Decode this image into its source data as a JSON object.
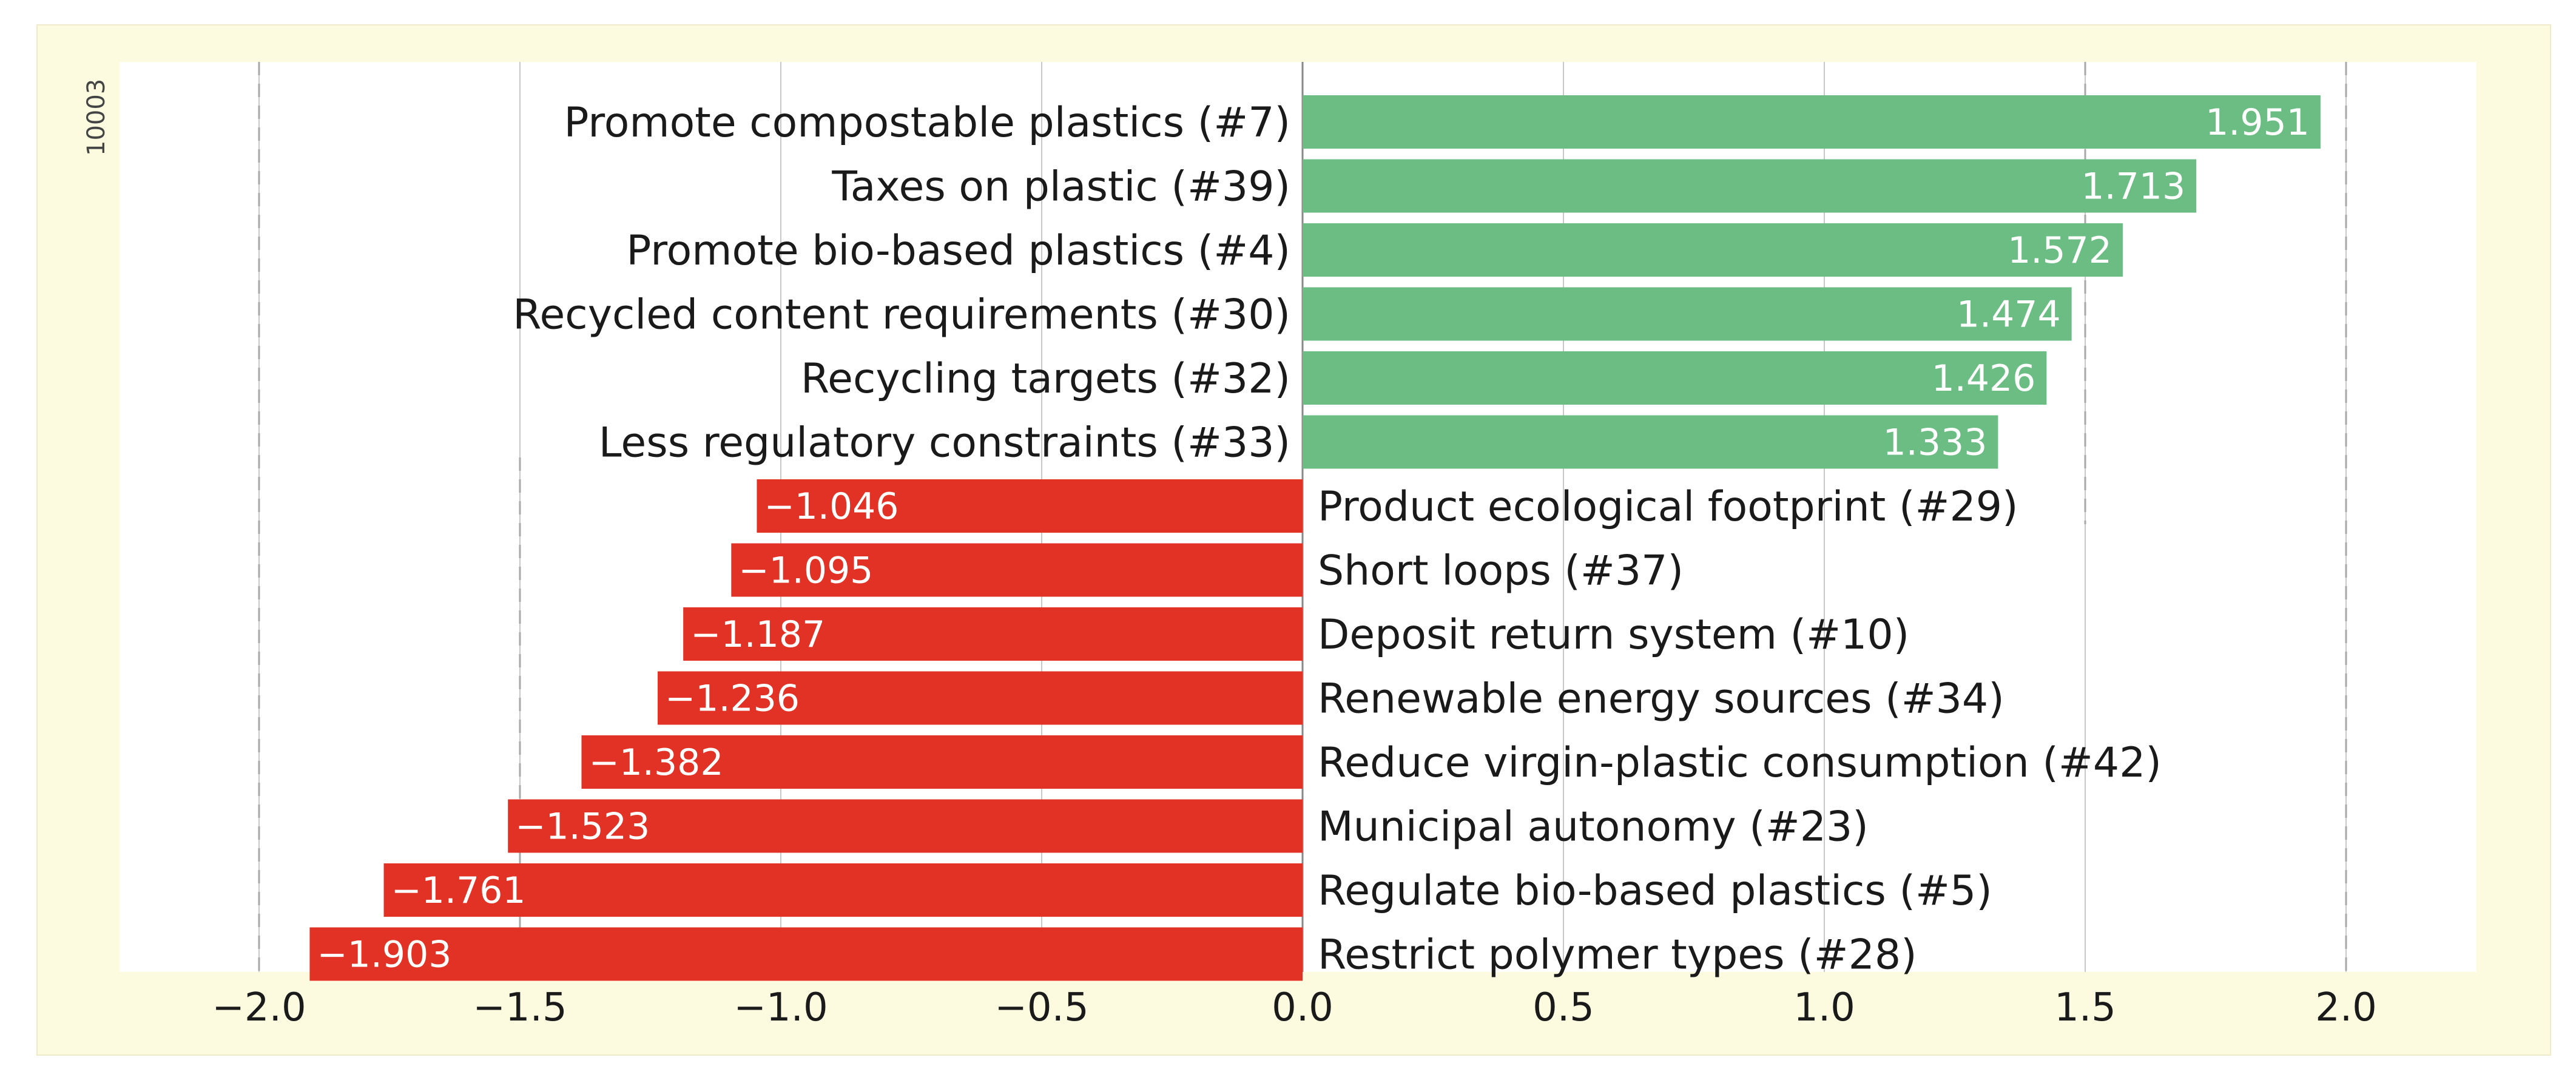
{
  "chart_data": {
    "type": "bar",
    "orientation": "horizontal",
    "id_label": "10003",
    "categories": [
      "Promote compostable plastics (#7)",
      "Taxes on plastic (#39)",
      "Promote bio-based plastics (#4)",
      "Recycled content requirements (#30)",
      "Recycling targets (#32)",
      "Less regulatory constraints (#33)",
      "Product ecological footprint (#29)",
      "Short loops (#37)",
      "Deposit return system (#10)",
      "Renewable energy sources (#34)",
      "Reduce virgin-plastic consumption (#42)",
      "Municipal autonomy (#23)",
      "Regulate bio-based plastics (#5)",
      "Restrict polymer types (#28)"
    ],
    "values": [
      1.951,
      1.713,
      1.572,
      1.474,
      1.426,
      1.333,
      -1.046,
      -1.095,
      -1.187,
      -1.236,
      -1.382,
      -1.523,
      -1.761,
      -1.903
    ],
    "value_labels": [
      "1.951",
      "1.713",
      "1.572",
      "1.474",
      "1.426",
      "1.333",
      "−1.046",
      "−1.095",
      "−1.187",
      "−1.236",
      "−1.382",
      "−1.523",
      "−1.761",
      "−1.903"
    ],
    "xlim": [
      -2.2,
      2.25
    ],
    "xticks": [
      -2.0,
      -1.5,
      -1.0,
      -0.5,
      0.0,
      0.5,
      1.0,
      1.5,
      2.0
    ],
    "xtick_labels": [
      "−2.0",
      "−1.5",
      "−1.0",
      "−0.5",
      "0.0",
      "0.5",
      "1.0",
      "1.5",
      "2.0"
    ],
    "critical_values": [
      -2.0,
      -1.5,
      1.5,
      2.0
    ],
    "title": "",
    "xlabel": "",
    "ylabel": "",
    "colors": {
      "positive": "#6cbd84",
      "negative": "#e23226",
      "grid": "#c8c8c8",
      "dashed": "#a8a8a8",
      "axis": "#888888"
    }
  }
}
